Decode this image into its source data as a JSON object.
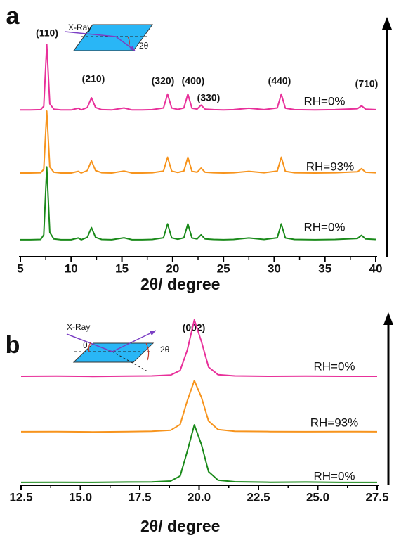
{
  "chart_data": [
    {
      "type": "line",
      "panel_label": "a",
      "xlabel": "2θ/ degree",
      "inset_labels": [
        "X-Ray",
        "2θ"
      ],
      "annotations": [
        "(110)",
        "(210)",
        "(320)",
        "(400)",
        "(330)",
        "(440)",
        "(710)"
      ],
      "x": [
        5,
        6,
        7,
        7.3,
        7.6,
        7.9,
        8.3,
        9,
        10,
        10.7,
        11,
        11.6,
        12.0,
        12.4,
        13,
        14,
        15.2,
        16,
        17,
        18,
        19.1,
        19.5,
        19.9,
        20.5,
        21.1,
        21.5,
        21.9,
        22.4,
        22.8,
        23.2,
        24,
        25,
        26,
        27.5,
        29,
        30.3,
        30.7,
        31.1,
        32,
        34,
        36,
        38.2,
        38.6,
        39,
        40
      ],
      "series": [
        {
          "name": "RH=0%",
          "color": "#e8309a",
          "values": [
            60.5,
            60.5,
            60.6,
            62,
            87.5,
            63,
            60.8,
            60.5,
            60.5,
            61.2,
            60.5,
            61.5,
            65.5,
            61.5,
            60.6,
            60.5,
            61.3,
            60.5,
            60.5,
            60.6,
            61.3,
            67,
            61.3,
            60.7,
            61.3,
            67,
            61.2,
            60.8,
            62.5,
            60.8,
            60.6,
            60.5,
            60.6,
            61.2,
            60.6,
            61.3,
            67,
            61.2,
            60.6,
            60.5,
            60.6,
            61,
            62.2,
            60.8,
            60.6
          ]
        },
        {
          "name": "RH=93%",
          "color": "#f7941d",
          "values": [
            34.5,
            34.5,
            34.6,
            36,
            60,
            37,
            34.8,
            34.5,
            34.5,
            35.2,
            34.5,
            35.5,
            39.5,
            35.5,
            34.6,
            34.5,
            35.3,
            34.5,
            34.5,
            34.6,
            35.3,
            41,
            35.3,
            34.7,
            35.3,
            41,
            35.2,
            34.8,
            36.5,
            34.8,
            34.6,
            34.5,
            34.6,
            35.2,
            34.6,
            35.3,
            41,
            35.2,
            34.6,
            34.5,
            34.6,
            35,
            36.3,
            34.8,
            34.6
          ]
        },
        {
          "name": "RH=0%",
          "color": "#1a8a1a",
          "values": [
            7,
            7,
            7.1,
            9,
            37,
            10,
            7.3,
            7,
            7,
            7.7,
            7,
            8,
            12,
            8,
            7.1,
            7,
            7.8,
            7,
            7,
            7.1,
            7.8,
            13.5,
            7.8,
            7.2,
            7.8,
            13.5,
            7.7,
            7.3,
            9,
            7.3,
            7.1,
            7,
            7.1,
            7.7,
            7.1,
            7.8,
            13.5,
            7.7,
            7.1,
            7,
            7.1,
            7.5,
            8.8,
            7.3,
            7.1
          ]
        }
      ],
      "xlim": [
        5,
        40
      ],
      "xticks": [
        5,
        10,
        15,
        20,
        25,
        30,
        35,
        40
      ],
      "ylim": [
        0,
        100
      ]
    },
    {
      "type": "line",
      "panel_label": "b",
      "xlabel": "2θ/ degree",
      "inset_labels": [
        "X-Ray",
        "θ",
        "2θ"
      ],
      "annotations": [
        "(002)"
      ],
      "x": [
        12.5,
        14,
        15.5,
        17,
        18,
        18.8,
        19.2,
        19.5,
        19.8,
        20.1,
        20.4,
        20.8,
        21.5,
        23,
        24.5,
        26,
        27.5
      ],
      "series": [
        {
          "name": "RH=0%",
          "color": "#e8309a",
          "values": [
            64.6,
            64.7,
            64.5,
            64.7,
            64.8,
            65.3,
            68,
            80,
            98,
            85,
            70,
            65.5,
            64.8,
            64.6,
            64.7,
            64.6,
            64.6
          ]
        },
        {
          "name": "RH=93%",
          "color": "#f7941d",
          "values": [
            31.7,
            31.8,
            31.6,
            31.8,
            32,
            32.6,
            36,
            50,
            62,
            52,
            38,
            33,
            32,
            31.8,
            31.7,
            31.8,
            31.7
          ]
        },
        {
          "name": "RH=0%",
          "color": "#1a8a1a",
          "values": [
            1.7,
            1.8,
            1.7,
            1.9,
            2,
            2.5,
            5.5,
            20,
            35.8,
            24,
            8,
            3,
            2.1,
            1.8,
            1.9,
            1.7,
            1.7
          ]
        }
      ],
      "xlim": [
        12.5,
        27.5
      ],
      "xticks": [
        12.5,
        {
          "value": 15,
          "label": "15.0"
        },
        17.5,
        {
          "value": 20,
          "label": "20.0"
        },
        22.5,
        {
          "value": 25,
          "label": "25.0"
        },
        27.5
      ],
      "ylim": [
        0,
        100
      ]
    }
  ]
}
